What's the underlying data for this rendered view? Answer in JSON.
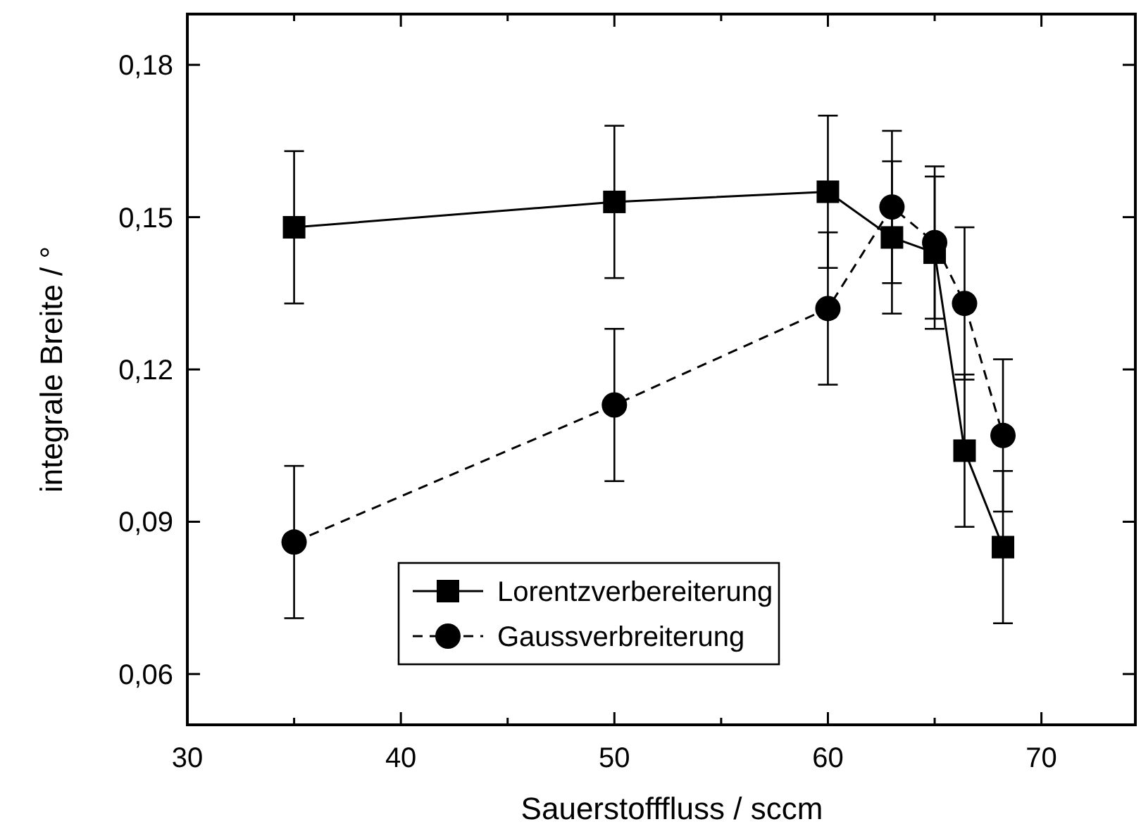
{
  "chart_data": {
    "type": "line",
    "xlabel": "Sauerstofffluss / sccm",
    "ylabel": "integrale Breite / °",
    "xlim": [
      30,
      74.4
    ],
    "ylim": [
      0.05,
      0.19
    ],
    "xticks": [
      30,
      {
        "value": 35,
        "label": null
      },
      40,
      {
        "value": 45,
        "label": null
      },
      50,
      {
        "value": 55,
        "label": null
      },
      60,
      {
        "value": 65,
        "label": null
      },
      70
    ],
    "yticks": [
      {
        "value": 0.06,
        "label": "0,06"
      },
      {
        "value": 0.09,
        "label": "0,09"
      },
      {
        "value": 0.12,
        "label": "0,12"
      },
      {
        "value": 0.15,
        "label": "0,15"
      },
      {
        "value": 0.18,
        "label": "0,18"
      }
    ],
    "grid": false,
    "legend": "bottom",
    "series": [
      {
        "name": "Lorentzverbereiterung",
        "color": "#000000",
        "marker": "square",
        "line_style": "solid",
        "x": [
          35,
          50,
          60,
          63,
          65,
          66.4,
          68.2
        ],
        "values": [
          0.148,
          0.153,
          0.155,
          0.146,
          0.143,
          0.104,
          0.085
        ],
        "errors": [
          0.015,
          0.015,
          0.015,
          0.015,
          0.015,
          0.015,
          0.015
        ]
      },
      {
        "name": "Gaussverbreiterung",
        "color": "#000000",
        "marker": "circle",
        "line_style": "dashed",
        "x": [
          35,
          50,
          60,
          63,
          65,
          66.4,
          68.2
        ],
        "values": [
          0.086,
          0.113,
          0.132,
          0.152,
          0.145,
          0.133,
          0.107
        ],
        "errors": [
          0.015,
          0.015,
          0.015,
          0.015,
          0.015,
          0.015,
          0.015
        ]
      }
    ]
  }
}
